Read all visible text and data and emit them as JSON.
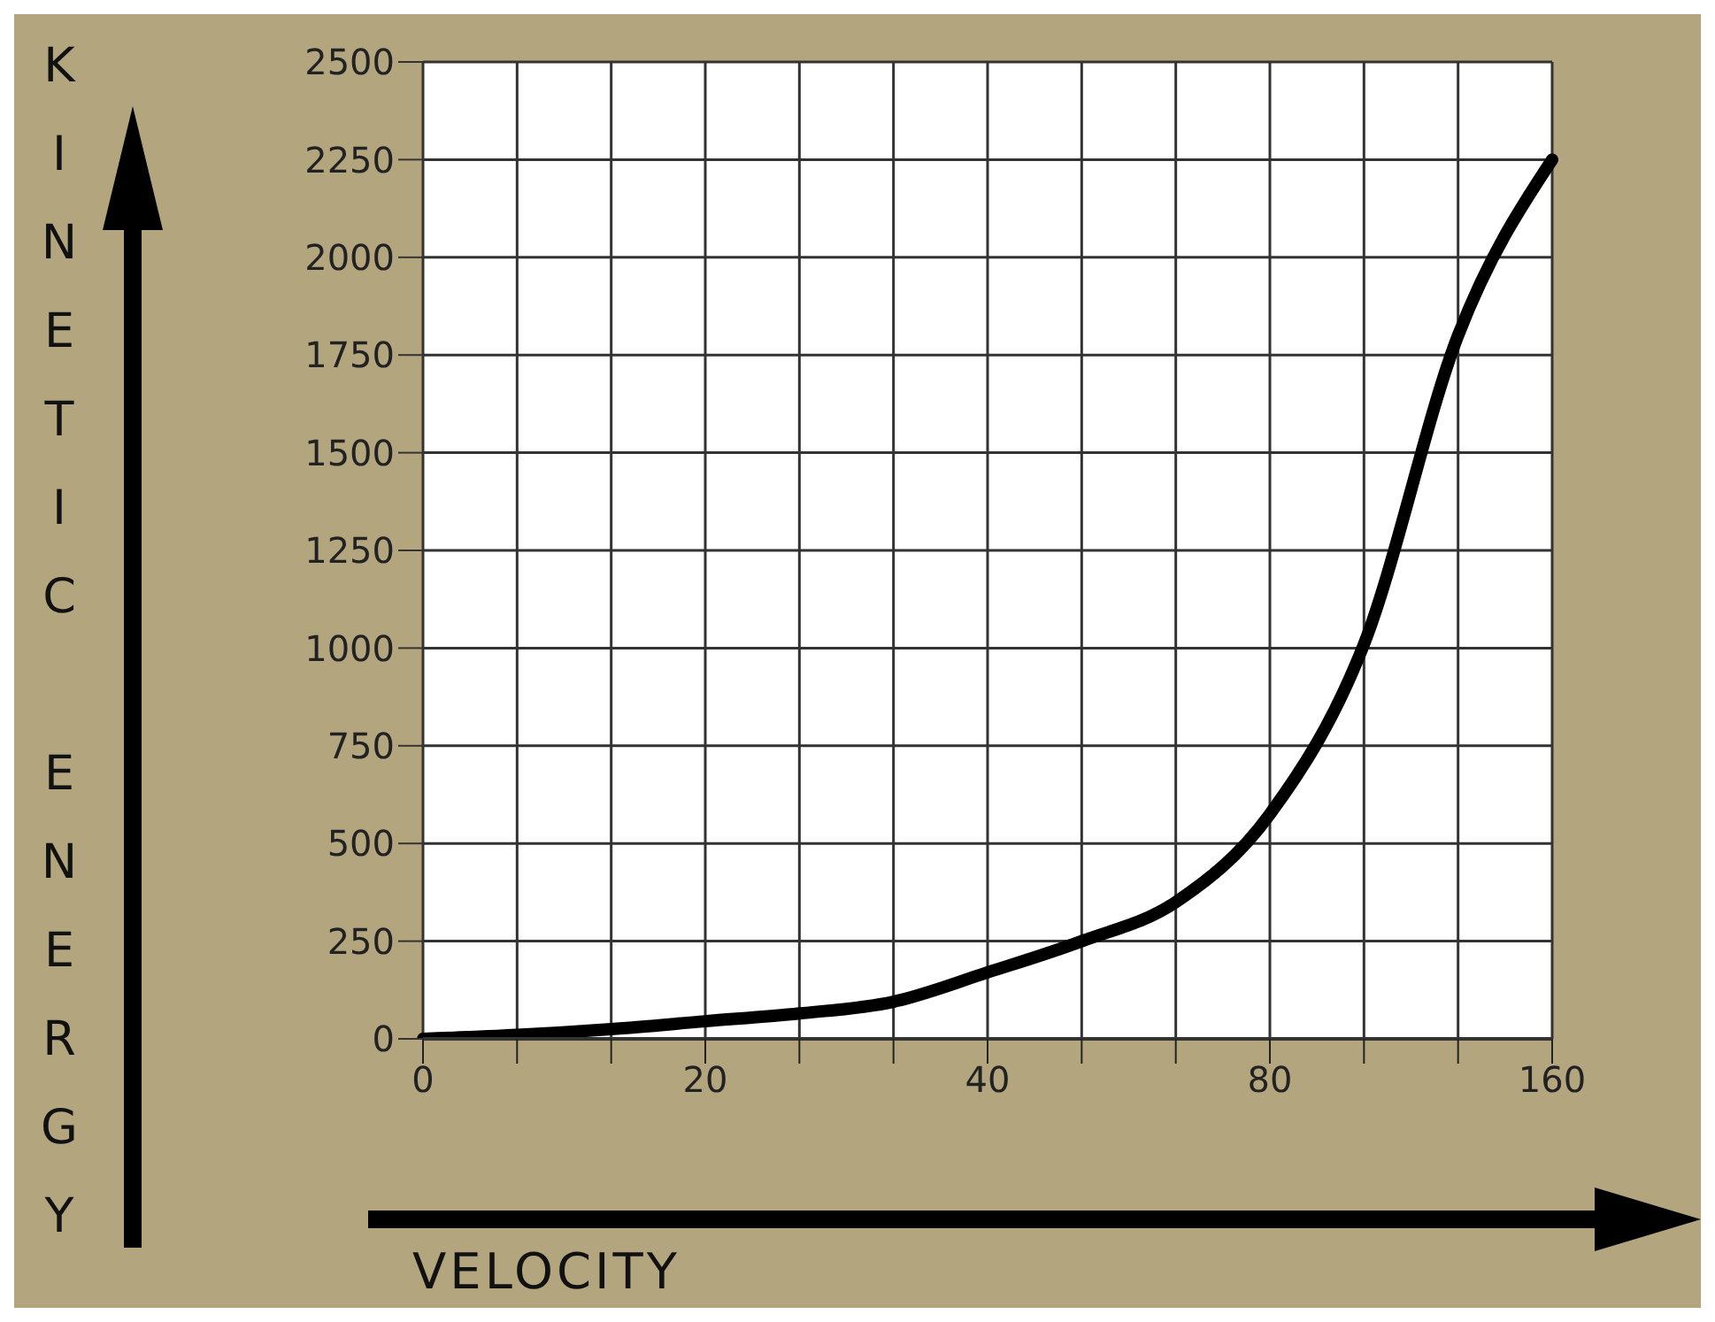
{
  "chart_data": {
    "type": "line",
    "xlabel": "VELOCITY",
    "ylabel": "KINETIC ENERGY",
    "categories": [
      "0",
      null,
      null,
      "20",
      null,
      null,
      "40",
      null,
      null,
      "80",
      null,
      null,
      "160"
    ],
    "series": [
      {
        "color": "#000000",
        "values": [
          0,
          10,
          25,
          45,
          65,
          95,
          170,
          250,
          350,
          575,
          1010,
          1800,
          2250
        ]
      }
    ],
    "ylim": [
      0,
      2500
    ],
    "yticks": [
      0,
      250,
      500,
      750,
      1000,
      1250,
      1500,
      1750,
      2000,
      2250,
      2500
    ],
    "grid": true
  }
}
